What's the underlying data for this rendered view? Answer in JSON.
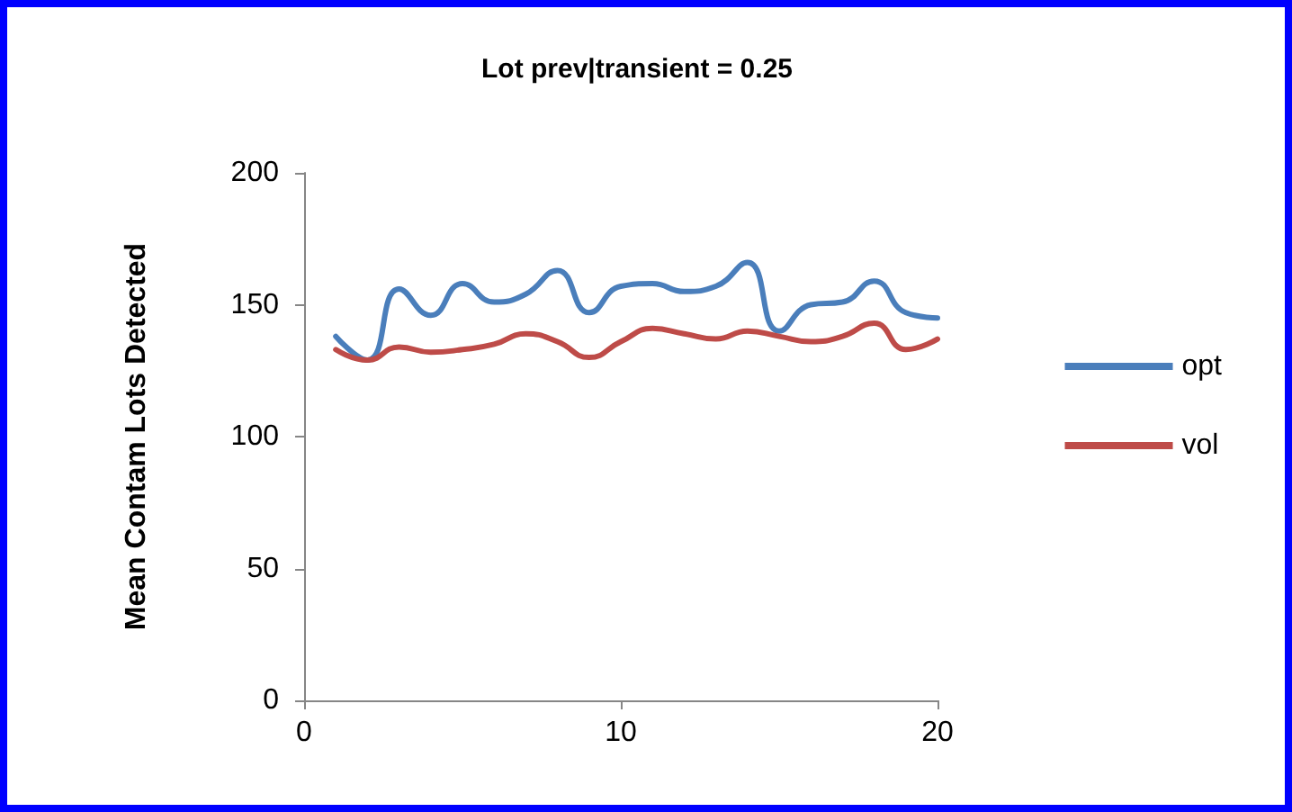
{
  "chart_data": {
    "type": "line",
    "title": "Lot prev|transient = 0.25",
    "ylabel": "Mean Contam Lots Detected",
    "x": [
      1,
      2,
      3,
      4,
      5,
      6,
      7,
      8,
      9,
      10,
      11,
      12,
      13,
      14,
      15,
      16,
      17,
      18,
      19,
      20
    ],
    "series": [
      {
        "name": "opt",
        "color": "#4a7ebb",
        "values": [
          138,
          129,
          156,
          146,
          158,
          151,
          154,
          163,
          147,
          157,
          158,
          155,
          157,
          166,
          140,
          150,
          151,
          159,
          147,
          145
        ]
      },
      {
        "name": "vol",
        "color": "#be4b48",
        "values": [
          133,
          129,
          134,
          132,
          133,
          135,
          139,
          136,
          130,
          136,
          141,
          139,
          137,
          140,
          138,
          136,
          138,
          143,
          133,
          137
        ]
      }
    ],
    "xlim": [
      0,
      20
    ],
    "xticks": [
      0,
      10,
      20
    ],
    "ylim": [
      0,
      200
    ],
    "yticks": [
      0,
      50,
      100,
      150,
      200
    ],
    "grid": false,
    "legend": "right",
    "marker": "none",
    "line_style": "solid"
  }
}
